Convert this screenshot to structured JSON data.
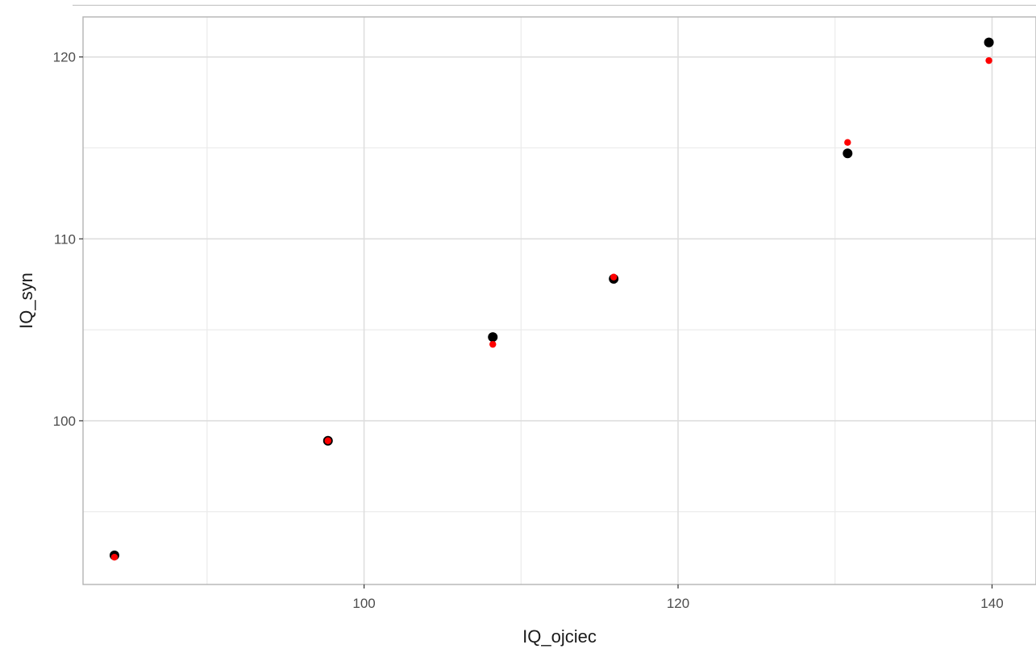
{
  "chart_data": {
    "type": "scatter",
    "title": "",
    "xlabel": "IQ_ojciec",
    "ylabel": "IQ_syn",
    "xlim": [
      82.1,
      142.8
    ],
    "ylim": [
      91.0,
      122.2
    ],
    "x_ticks": [
      100,
      120,
      140
    ],
    "x_minor": [
      90,
      110,
      130
    ],
    "y_ticks": [
      100,
      110,
      120
    ],
    "y_minor": [
      95,
      105,
      115
    ],
    "x_tick_labels": [
      "100",
      "120",
      "140"
    ],
    "y_tick_labels": [
      "100",
      "110",
      "120"
    ],
    "grid": true,
    "series": [
      {
        "color": "#000000",
        "x": [
          84.1,
          97.7,
          108.2,
          115.9,
          130.8,
          139.8
        ],
        "y": [
          92.6,
          98.9,
          104.6,
          107.8,
          114.7,
          120.8
        ]
      },
      {
        "color": "#ff0000",
        "x": [
          84.1,
          97.7,
          108.2,
          115.9,
          130.8,
          139.8
        ],
        "y": [
          92.5,
          98.9,
          104.2,
          107.9,
          115.3,
          119.8
        ]
      }
    ]
  }
}
